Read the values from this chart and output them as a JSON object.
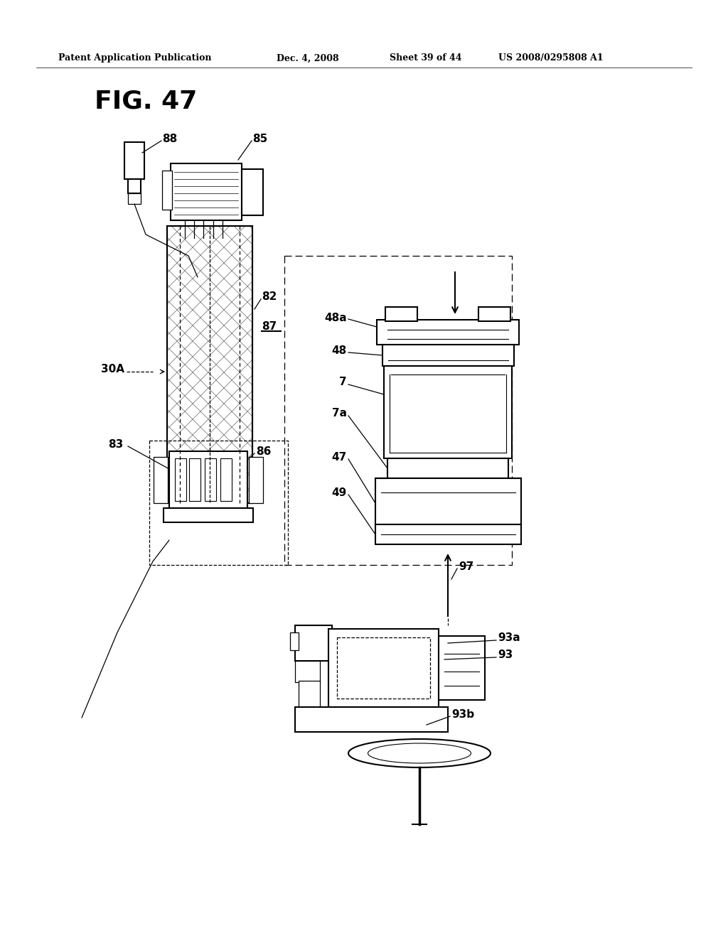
{
  "background_color": "#ffffff",
  "header_text": "Patent Application Publication",
  "header_date": "Dec. 4, 2008",
  "header_sheet": "Sheet 39 of 44",
  "header_patent": "US 2008/0295808 A1",
  "fig_label": "FIG. 47"
}
